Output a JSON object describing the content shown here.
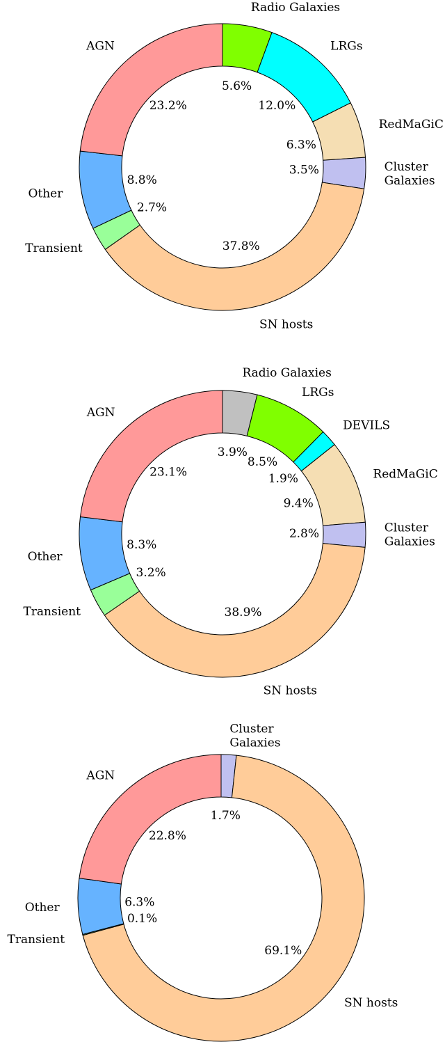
{
  "chart_data": [
    {
      "type": "donut",
      "categories": [
        "Radio Galaxies",
        "LRGs",
        "RedMaGiC",
        "Cluster\nGalaxies",
        "SN hosts",
        "Transient",
        "Other",
        "AGN"
      ],
      "values": [
        5.6,
        12.0,
        6.3,
        3.5,
        37.8,
        2.7,
        8.8,
        23.2
      ],
      "value_labels": [
        "5.6%",
        "12.0%",
        "6.3%",
        "3.5%",
        "37.8%",
        "2.7%",
        "8.8%",
        "23.2%"
      ],
      "colors": [
        "#80ff00",
        "#00ffff",
        "#f5deb3",
        "#c0c0f0",
        "#ffcc99",
        "#99ff99",
        "#66b3ff",
        "#ff9999"
      ]
    },
    {
      "type": "donut",
      "categories": [
        "Radio Galaxies",
        "LRGs",
        "DEVILS",
        "RedMaGiC",
        "Cluster\nGalaxies",
        "SN hosts",
        "Transient",
        "Other",
        "AGN"
      ],
      "values": [
        3.9,
        8.5,
        1.9,
        9.4,
        2.8,
        38.9,
        3.2,
        8.3,
        23.1
      ],
      "value_labels": [
        "3.9%",
        "8.5%",
        "1.9%",
        "9.4%",
        "2.8%",
        "38.9%",
        "3.2%",
        "8.3%",
        "23.1%"
      ],
      "colors": [
        "#c0c0c0",
        "#80ff00",
        "#00ffff",
        "#f5deb3",
        "#c0c0f0",
        "#ffcc99",
        "#99ff99",
        "#66b3ff",
        "#ff9999"
      ]
    },
    {
      "type": "donut",
      "categories": [
        "Cluster\nGalaxies",
        "SN hosts",
        "Transient",
        "Other",
        "AGN"
      ],
      "values": [
        1.7,
        69.1,
        0.1,
        6.3,
        22.8
      ],
      "value_labels": [
        "1.7%",
        "69.1%",
        "0.1%",
        "6.3%",
        "22.8%"
      ],
      "colors": [
        "#c0c0f0",
        "#ffcc99",
        "#99ff99",
        "#66b3ff",
        "#ff9999"
      ]
    }
  ]
}
